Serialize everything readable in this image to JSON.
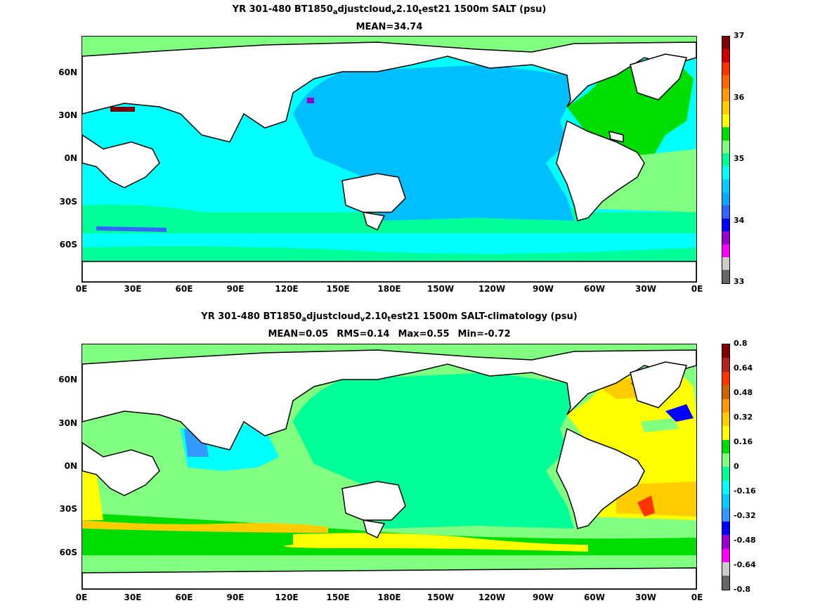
{
  "panels": [
    {
      "title_parts": [
        "YR 301-480 BT1850",
        "a",
        "djustcloud",
        "v",
        "2.10",
        "t",
        "est21 1500m SALT (psu)"
      ],
      "stats": [
        "MEAN=34.74"
      ],
      "lat_labels": [
        "60N",
        "30N",
        "0N",
        "30S",
        "60S"
      ],
      "lon_labels": [
        "0E",
        "30E",
        "60E",
        "90E",
        "120E",
        "150E",
        "180E",
        "150W",
        "120W",
        "90W",
        "60W",
        "30W",
        "0E"
      ],
      "colorbar": {
        "labels": [
          "37",
          "36",
          "35",
          "34",
          "33"
        ],
        "colors": [
          "#800000",
          "#cc0000",
          "#ff3300",
          "#ff6600",
          "#ff9900",
          "#ffcc00",
          "#ffff00",
          "#00dd00",
          "#80ff80",
          "#00ff99",
          "#00ffff",
          "#00ccff",
          "#00aaff",
          "#3366ff",
          "#0000ff",
          "#9900cc",
          "#ff00ff",
          "#cccccc",
          "#666666"
        ]
      }
    },
    {
      "title_parts": [
        "YR 301-480 BT1850",
        "a",
        "djustcloud",
        "v",
        "2.10",
        "t",
        "est21 1500m SALT-climatology (psu)"
      ],
      "stats": [
        "MEAN=0.05",
        "RMS=0.14",
        "Max=0.55",
        "Min=-0.72"
      ],
      "lat_labels": [
        "60N",
        "30N",
        "0N",
        "30S",
        "60S"
      ],
      "lon_labels": [
        "0E",
        "30E",
        "60E",
        "90E",
        "120E",
        "150E",
        "180E",
        "150W",
        "120W",
        "90W",
        "60W",
        "30W",
        "0E"
      ],
      "colorbar": {
        "labels": [
          "0.8",
          "0.64",
          "0.48",
          "0.32",
          "0.16",
          "0",
          "-0.16",
          "-0.32",
          "-0.48",
          "-0.64",
          "-0.8"
        ],
        "colors": [
          "#800000",
          "#b22222",
          "#ff3300",
          "#cc6600",
          "#ff9900",
          "#ffcc00",
          "#ffff00",
          "#00dd00",
          "#80ff80",
          "#00ff99",
          "#00ffff",
          "#00ccff",
          "#3399ff",
          "#0000ff",
          "#9900cc",
          "#ff00ff",
          "#cccccc",
          "#666666"
        ]
      }
    }
  ],
  "colors": {
    "land": "#ffffff",
    "coast": "#000000",
    "pacific_top": "#00bfff",
    "indian_top": "#00ffff",
    "atlantic_top": "#00dd00",
    "pacific_bottom": "#00ff99",
    "atlantic_bottom": "#ffff00"
  }
}
